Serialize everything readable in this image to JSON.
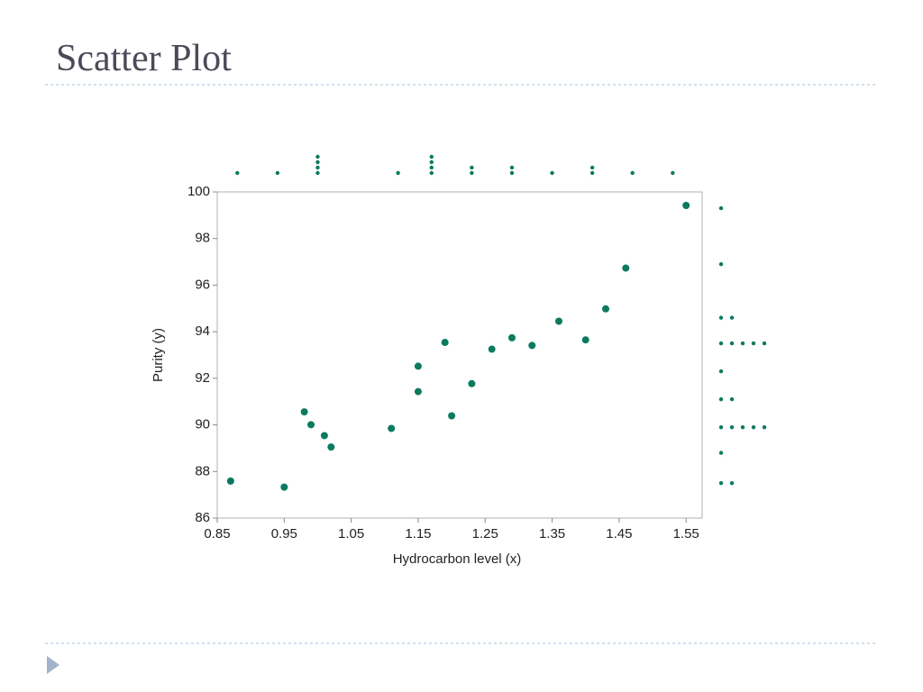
{
  "chart_data": {
    "type": "scatter",
    "title": "Scatter Plot",
    "x_label": "Hydrocarbon level (x)",
    "y_label": "Purity (y)",
    "color": "#0b7a5f",
    "x": [
      0.99,
      1.02,
      1.15,
      1.29,
      1.46,
      1.36,
      0.87,
      1.23,
      1.55,
      1.4,
      1.19,
      1.15,
      0.98,
      1.01,
      1.11,
      1.2,
      1.26,
      1.32,
      1.43,
      0.95
    ],
    "values": [
      90.01,
      89.05,
      91.43,
      93.74,
      96.73,
      94.45,
      87.59,
      91.77,
      99.42,
      93.65,
      93.54,
      92.52,
      90.56,
      89.54,
      89.85,
      90.39,
      93.25,
      93.41,
      94.98,
      87.33
    ],
    "xlim": [
      0.85,
      1.574
    ],
    "xticks": [
      0.85,
      0.95,
      1.05,
      1.15,
      1.25,
      1.35,
      1.45,
      1.55
    ],
    "ylim": [
      86,
      100
    ],
    "yticks": [
      86,
      88,
      90,
      92,
      94,
      96,
      98,
      100
    ],
    "x_dotplot": {
      "centers": [
        0.88,
        0.94,
        1.0,
        1.12,
        1.17,
        1.23,
        1.29,
        1.35,
        1.41,
        1.47,
        1.53
      ],
      "counts": [
        1,
        1,
        4,
        1,
        4,
        2,
        2,
        1,
        2,
        1,
        1
      ]
    },
    "y_dotplot": {
      "centers": [
        99.3,
        96.9,
        94.6,
        93.5,
        92.3,
        91.1,
        89.9,
        88.8,
        87.5
      ],
      "counts": [
        1,
        1,
        2,
        5,
        1,
        2,
        5,
        1,
        2
      ]
    }
  }
}
